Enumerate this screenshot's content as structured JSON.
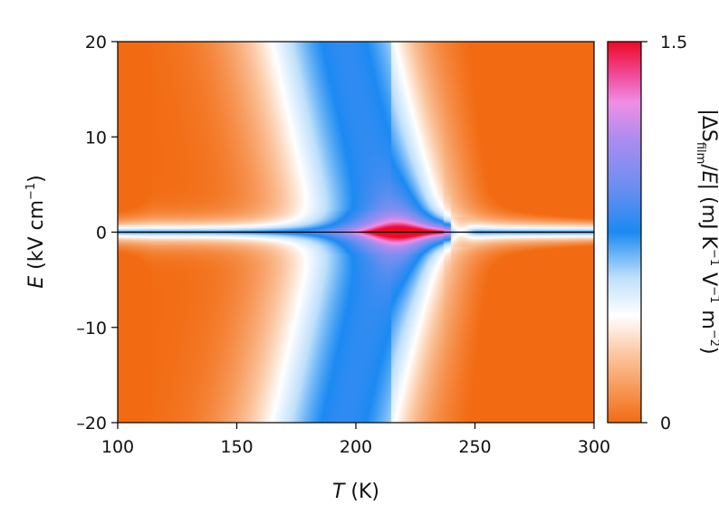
{
  "chart_data": {
    "type": "heatmap",
    "title": "",
    "xlabel": {
      "var": "T",
      "unit": "(K)"
    },
    "ylabel": {
      "var": "E",
      "unit_pre": "(kV cm",
      "unit_sup": "−1",
      "unit_post": ")"
    },
    "colorbar_label": {
      "p1": "|ΔS",
      "p2": "film",
      "p3": "/",
      "p4": "E",
      "p5": "| (mJ K",
      "p6": "−1",
      "p7": " V",
      "p8": "−1",
      "p9": " m",
      "p10": "−2",
      "p11": ")"
    },
    "xlim": [
      100,
      300
    ],
    "ylim": [
      -20,
      20
    ],
    "clim": [
      0,
      1.5
    ],
    "x_ticks": [
      100,
      150,
      200,
      250,
      300
    ],
    "x_tick_labels": [
      "100",
      "150",
      "200",
      "250",
      "300"
    ],
    "y_ticks": [
      20,
      10,
      0,
      -10,
      -20
    ],
    "y_tick_labels": [
      "20",
      "10",
      "0",
      "–10",
      "–20"
    ],
    "colorbar_ticks": [
      1.5,
      0
    ],
    "colorbar_tick_labels": [
      "1.5",
      "0"
    ],
    "colormap": [
      {
        "v": 0.0,
        "color": "#f26b12"
      },
      {
        "v": 0.18,
        "color": "#fbc7a1"
      },
      {
        "v": 0.28,
        "color": "#ffffff"
      },
      {
        "v": 0.38,
        "color": "#bfe0fb"
      },
      {
        "v": 0.5,
        "color": "#1b8af2"
      },
      {
        "v": 0.62,
        "color": "#6c8ff0"
      },
      {
        "v": 0.74,
        "color": "#a98cf0"
      },
      {
        "v": 0.84,
        "color": "#f08ee6"
      },
      {
        "v": 0.92,
        "color": "#f0448f"
      },
      {
        "v": 1.0,
        "color": "#ee0a26"
      }
    ],
    "zero_field_line": true,
    "grid": false
  }
}
